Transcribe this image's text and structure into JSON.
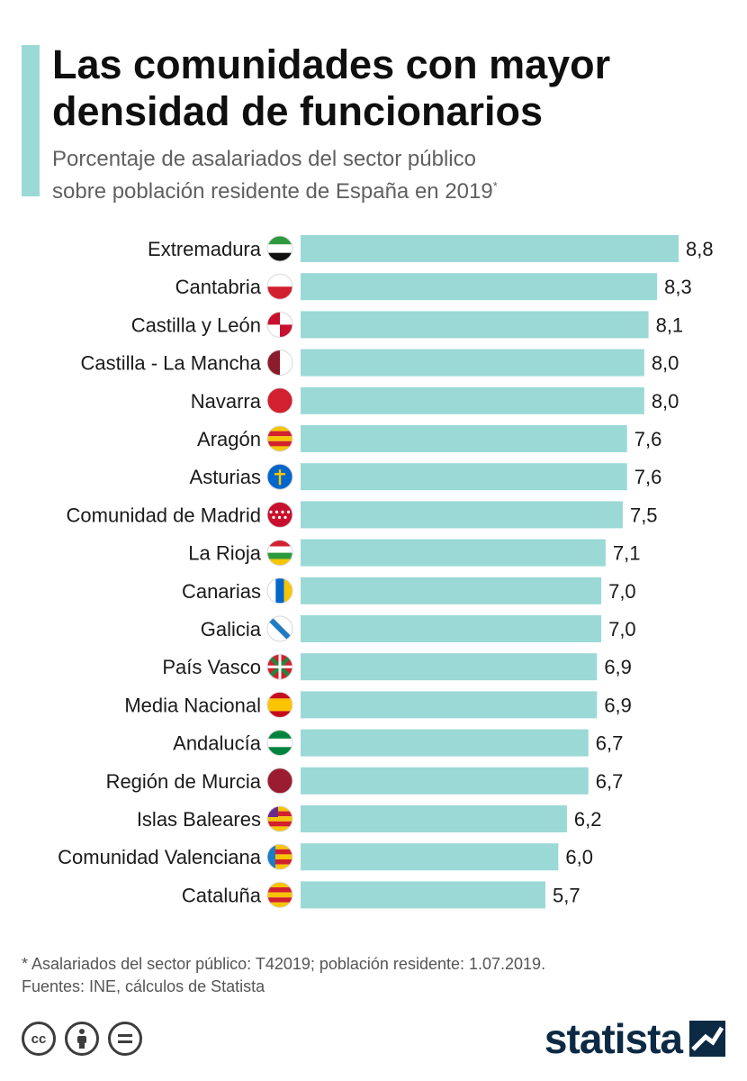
{
  "header": {
    "title_line1": "Las comunidades con mayor",
    "title_line2": "densidad de funcionarios",
    "subtitle_line1": "Porcentaje de asalariados del sector público",
    "subtitle_line2": "sobre población residente de España en 2019",
    "subtitle_marker": "*"
  },
  "chart_data": {
    "type": "bar",
    "orientation": "horizontal",
    "categories": [
      "Extremadura",
      "Cantabria",
      "Castilla y León",
      "Castilla - La Mancha",
      "Navarra",
      "Aragón",
      "Asturias",
      "Comunidad de Madrid",
      "La Rioja",
      "Canarias",
      "Galicia",
      "País Vasco",
      "Media Nacional",
      "Andalucía",
      "Región de Murcia",
      "Islas Baleares",
      "Comunidad Valenciana",
      "Cataluña"
    ],
    "values": [
      8.8,
      8.3,
      8.1,
      8.0,
      8.0,
      7.6,
      7.6,
      7.5,
      7.1,
      7.0,
      7.0,
      6.9,
      6.9,
      6.7,
      6.7,
      6.2,
      6.0,
      5.7
    ],
    "value_labels": [
      "8,8",
      "8,3",
      "8,1",
      "8,0",
      "8,0",
      "7,6",
      "7,6",
      "7,5",
      "7,1",
      "7,0",
      "7,0",
      "6,9",
      "6,9",
      "6,7",
      "6,7",
      "6,2",
      "6,0",
      "5,7"
    ],
    "xlim": [
      0,
      8.8
    ],
    "grid": false,
    "bar_color": "#9ad9d6",
    "flag_icons": [
      "extremadura-flag-icon",
      "cantabria-flag-icon",
      "castilla-y-leon-flag-icon",
      "castilla-la-mancha-flag-icon",
      "navarra-flag-icon",
      "aragon-flag-icon",
      "asturias-flag-icon",
      "madrid-flag-icon",
      "la-rioja-flag-icon",
      "canarias-flag-icon",
      "galicia-flag-icon",
      "pais-vasco-flag-icon",
      "spain-flag-icon",
      "andalucia-flag-icon",
      "murcia-flag-icon",
      "baleares-flag-icon",
      "valenciana-flag-icon",
      "cataluna-flag-icon"
    ]
  },
  "footer": {
    "note": "* Asalariados del sector público: T42019; población residente: 1.07.2019.",
    "sources": "Fuentes: INE, cálculos de Statista",
    "brand": "statista",
    "license_icons": [
      "cc-icon",
      "attribution-icon",
      "no-derivatives-icon"
    ]
  },
  "colors": {
    "accent": "#9ad9d6",
    "brand": "#0d2a45",
    "subtitle": "#606060"
  }
}
